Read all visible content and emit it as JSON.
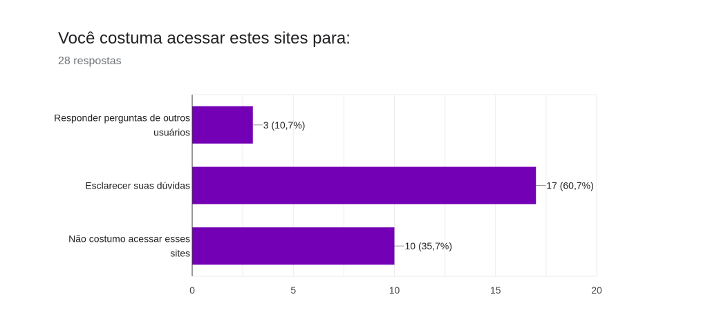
{
  "title": "Você costuma acessar estes sites para:",
  "subtitle": "28 respostas",
  "colors": {
    "bar": "#7300b5",
    "grid": "#ececec",
    "axis": "#333333",
    "label": "#222222",
    "tick": "#444444",
    "leader": "#999999"
  },
  "chart_data": {
    "type": "bar",
    "orientation": "horizontal",
    "categories": [
      [
        "Responder perguntas de outros",
        "usuários"
      ],
      [
        "Esclarecer suas dúvidas"
      ],
      [
        "Não costumo acessar esses",
        "sites"
      ]
    ],
    "values": [
      3,
      17,
      10
    ],
    "data_labels": [
      "3 (10,7%)",
      "17 (60,7%)",
      "10 (35,7%)"
    ],
    "xlim": [
      0,
      20
    ],
    "xticks": [
      0,
      5,
      10,
      15,
      20
    ],
    "grid": true,
    "legend": "none"
  }
}
